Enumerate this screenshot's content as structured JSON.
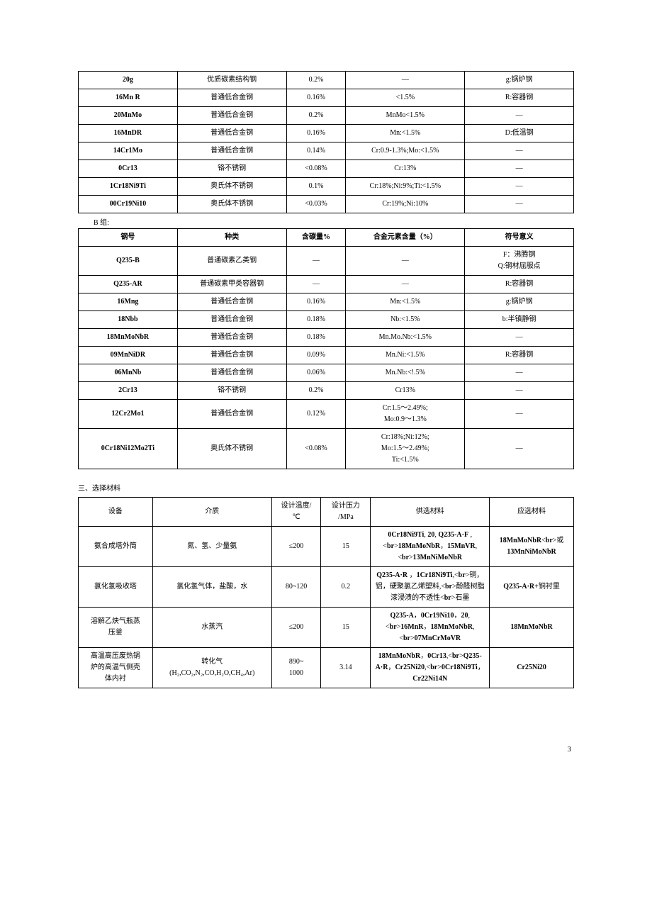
{
  "tableA": {
    "rows": [
      {
        "steel": "20g",
        "type": "优质碳素结构钢",
        "carbon": "0.2%",
        "alloy": "—",
        "symbol": "g:锅炉钢"
      },
      {
        "steel": "16Mn R",
        "type": "普通低合金钢",
        "carbon": "0.16%",
        "alloy": "<1.5%",
        "symbol": "R:容器钢"
      },
      {
        "steel": "20MnMo",
        "type": "普通低合金钢",
        "carbon": "0.2%",
        "alloy": "MnMo<1.5%",
        "symbol": "—"
      },
      {
        "steel": "16MnDR",
        "type": "普通低合金钢",
        "carbon": "0.16%",
        "alloy": "Mn:<1.5%",
        "symbol": "D:低温钢"
      },
      {
        "steel": "14Cr1Mo",
        "type": "普通低合金钢",
        "carbon": "0.14%",
        "alloy": "Cr:0.9-1.3%;Mo:<1.5%",
        "symbol": "—"
      },
      {
        "steel": "0Cr13",
        "type": "铬不锈钢",
        "carbon": "<0.08%",
        "alloy": "Cr:13%",
        "symbol": "—"
      },
      {
        "steel": "1Cr18Ni9Ti",
        "type": "奥氏体不锈钢",
        "carbon": "0.1%",
        "alloy": "Cr:18%;Ni:9%;Ti:<1.5%",
        "symbol": "—"
      },
      {
        "steel": "00Cr19Ni10",
        "type": "奥氏体不锈钢",
        "carbon": "<0.03%",
        "alloy": "Cr:19%;Ni:10%",
        "symbol": "—"
      }
    ]
  },
  "labelB": "B 组:",
  "tableB": {
    "headers": [
      "钢号",
      "种类",
      "含碳量%",
      "合金元素含量（%）",
      "符号意义"
    ],
    "rows": [
      {
        "steel": "Q235-B",
        "type": "普通碳素乙类钢",
        "carbon": "—",
        "alloy": "—",
        "symbol": "F：沸腾钢\nQ:钢材屈服点"
      },
      {
        "steel": "Q235-AR",
        "type": "普通碳素甲类容器钢",
        "carbon": "—",
        "alloy": "—",
        "symbol": "R:容器钢"
      },
      {
        "steel": "16Mng",
        "type": "普通低合金钢",
        "carbon": "0.16%",
        "alloy": "Mn:<1.5%",
        "symbol": "g:锅炉钢"
      },
      {
        "steel": "18Nbb",
        "type": "普通低合金钢",
        "carbon": "0.18%",
        "alloy": "Nb:<1.5%",
        "symbol": "b:半镇静钢"
      },
      {
        "steel": "18MnMoNbR",
        "type": "普通低合金钢",
        "carbon": "0.18%",
        "alloy": "Mn.Mo.Nb:<1.5%",
        "symbol": "—"
      },
      {
        "steel": "09MnNiDR",
        "type": "普通低合金钢",
        "carbon": "0.09%",
        "alloy": "Mn.Ni:<1.5%",
        "symbol": "R:容器钢"
      },
      {
        "steel": "06MnNb",
        "type": "普通低合金钢",
        "carbon": "0.06%",
        "alloy": "Mn.Nb:<!.5%",
        "symbol": "—"
      },
      {
        "steel": "2Cr13",
        "type": "铬不锈钢",
        "carbon": "0.2%",
        "alloy": "Cr13%",
        "symbol": "—"
      },
      {
        "steel": "12Cr2Mo1",
        "type": "普通低合金钢",
        "carbon": "0.12%",
        "alloy": "Cr:1.5～2.49%;\nMo:0.9～1.3%",
        "symbol": "—"
      },
      {
        "steel": "0Cr18Ni12Mo2Ti",
        "type": "奥氏体不锈钢",
        "carbon": "<0.08%",
        "alloy": "Cr:18%;Ni:12%;\nMo:1.5～2.49%;\nTi:<1.5%",
        "symbol": "—"
      }
    ]
  },
  "section3": "三、选择材料",
  "tableC": {
    "headers": [
      "设备",
      "介质",
      "设计温度/\n℃",
      "设计压力\n/MPa",
      "供选材料",
      "应选材料"
    ],
    "rows": [
      {
        "equip": "氨合成塔外筒",
        "medium": "氮、氢、少量氨",
        "temp": "≤200",
        "press": "15",
        "supply": "0Cr18Ni9Ti, 20, Q235-A·F ,\n18MnMoNbR，15MnVR,\n13MnNiMoNbR",
        "select": "18MnMoNbR\n或 13MnNiMoNbR"
      },
      {
        "equip": "氯化氢吸收塔",
        "medium": "氯化氢气体，盐酸，水",
        "temp": "80~120",
        "press": "0.2",
        "supply": "Q235-A·R ，1Cr18Ni9Ti,\n铜，铝，硬聚氯乙烯塑料,\n酚醛树脂漆浸渍的不透性\n石墨",
        "select": "Q235-A·R+铜衬里"
      },
      {
        "equip": "溶解乙炔气瓶蒸\n压釜",
        "medium": "水蒸汽",
        "temp": "≤200",
        "press": "15",
        "supply": "Q235-A，0Cr19Ni10，20,\n16MnR，18MnMoNbR,\n07MnCrMoVR",
        "select": "18MnMoNbR"
      },
      {
        "equip": "高温高压废热锅\n炉的高温气侧壳\n体内衬",
        "medium": "转化气\n(H₂,CO₂,N₂,CO,H₂O,CH₄,Ar)",
        "temp": "890~\n1000",
        "press": "3.14",
        "supply": "18MnMoNbR，0Cr13,\nQ235-A·R，Cr25Ni20,\n0Cr18Ni9Ti，Cr22Ni14N",
        "select": "Cr25Ni20"
      }
    ]
  },
  "pageNum": "3"
}
